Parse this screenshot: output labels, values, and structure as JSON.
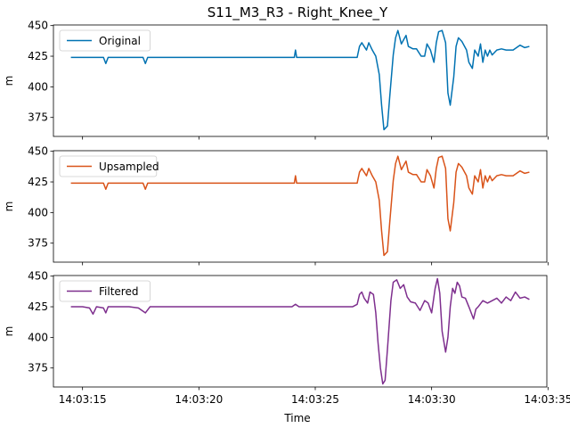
{
  "figure": {
    "title": "S11_M3_R3 - Right_Knee_Y",
    "xlabel": "Time",
    "x_tick_labels": [
      "14:03:15",
      "14:03:20",
      "14:03:25",
      "14:03:30",
      "14:03:35"
    ],
    "x_ticks_seconds": [
      15,
      20,
      25,
      30,
      35
    ]
  },
  "chart_data": [
    {
      "type": "line",
      "series": [
        {
          "name": "Original",
          "color": "#0072b2",
          "x": [
            14.5,
            15.9,
            16.0,
            16.1,
            16.4,
            16.5,
            17.6,
            17.7,
            17.8,
            18.2,
            21.3,
            24.1,
            24.15,
            24.2,
            24.3,
            26.8,
            26.9,
            27.0,
            27.2,
            27.3,
            27.45,
            27.6,
            27.75,
            27.85,
            27.95,
            28.1,
            28.2,
            28.35,
            28.45,
            28.55,
            28.7,
            28.9,
            29.0,
            29.2,
            29.35,
            29.55,
            29.7,
            29.8,
            29.95,
            30.1,
            30.2,
            30.3,
            30.45,
            30.6,
            30.7,
            30.8,
            30.95,
            31.05,
            31.15,
            31.3,
            31.5,
            31.6,
            31.75,
            31.85,
            32.0,
            32.1,
            32.2,
            32.3,
            32.4,
            32.5,
            32.6,
            32.8,
            33.0,
            33.2,
            33.5,
            33.8,
            34.0,
            34.2
          ],
          "y": [
            424,
            424,
            419,
            424,
            424,
            424,
            424,
            419,
            424,
            424,
            424,
            424,
            430,
            424,
            424,
            424,
            433,
            436,
            430,
            436,
            430,
            425,
            410,
            385,
            365,
            368,
            392,
            426,
            440,
            446,
            435,
            442,
            433,
            431,
            431,
            425,
            425,
            435,
            430,
            420,
            436,
            445,
            446,
            436,
            395,
            385,
            408,
            433,
            440,
            437,
            430,
            420,
            415,
            430,
            425,
            435,
            420,
            430,
            425,
            430,
            426,
            430,
            431,
            430,
            430,
            434,
            432,
            433
          ]
        }
      ],
      "legend_position": "upper-left",
      "ylabel": "m",
      "y_tick_labels": [
        "375",
        "400",
        "425",
        "450"
      ],
      "xlim": [
        13.75,
        34.95
      ],
      "ylim": [
        359.5,
        450.5
      ]
    },
    {
      "type": "line",
      "series": [
        {
          "name": "Upsampled",
          "color": "#d95319",
          "x": [
            14.5,
            15.9,
            16.0,
            16.1,
            16.4,
            16.5,
            17.6,
            17.7,
            17.8,
            18.2,
            21.3,
            24.1,
            24.15,
            24.2,
            24.3,
            26.8,
            26.9,
            27.0,
            27.2,
            27.3,
            27.45,
            27.6,
            27.75,
            27.85,
            27.95,
            28.1,
            28.2,
            28.35,
            28.45,
            28.55,
            28.7,
            28.9,
            29.0,
            29.2,
            29.35,
            29.55,
            29.7,
            29.8,
            29.95,
            30.1,
            30.2,
            30.3,
            30.45,
            30.6,
            30.7,
            30.8,
            30.95,
            31.05,
            31.15,
            31.3,
            31.5,
            31.6,
            31.75,
            31.85,
            32.0,
            32.1,
            32.2,
            32.3,
            32.4,
            32.5,
            32.6,
            32.8,
            33.0,
            33.2,
            33.5,
            33.8,
            34.0,
            34.2
          ],
          "y": [
            424,
            424,
            419,
            424,
            424,
            424,
            424,
            419,
            424,
            424,
            424,
            424,
            430,
            424,
            424,
            424,
            433,
            436,
            430,
            436,
            430,
            425,
            410,
            385,
            365,
            368,
            392,
            426,
            440,
            446,
            435,
            442,
            433,
            431,
            431,
            425,
            425,
            435,
            430,
            420,
            436,
            445,
            446,
            436,
            395,
            385,
            408,
            433,
            440,
            437,
            430,
            420,
            415,
            430,
            425,
            435,
            420,
            430,
            425,
            430,
            426,
            430,
            431,
            430,
            430,
            434,
            432,
            433
          ]
        }
      ],
      "legend_position": "upper-left",
      "ylabel": "m",
      "y_tick_labels": [
        "375",
        "400",
        "425",
        "450"
      ],
      "xlim": [
        13.75,
        34.95
      ],
      "ylim": [
        359.5,
        450.5
      ]
    },
    {
      "type": "line",
      "series": [
        {
          "name": "Filtered",
          "color": "#7e2f8e",
          "x": [
            14.5,
            15.0,
            15.3,
            15.45,
            15.6,
            15.9,
            16.0,
            16.1,
            16.3,
            16.6,
            17.0,
            17.4,
            17.7,
            17.9,
            18.2,
            20.0,
            23.0,
            24.0,
            24.15,
            24.3,
            26.0,
            26.6,
            26.8,
            26.9,
            27.0,
            27.1,
            27.25,
            27.35,
            27.5,
            27.6,
            27.7,
            27.8,
            27.9,
            28.0,
            28.1,
            28.25,
            28.35,
            28.5,
            28.65,
            28.8,
            28.95,
            29.1,
            29.3,
            29.5,
            29.7,
            29.85,
            30.0,
            30.15,
            30.25,
            30.35,
            30.45,
            30.6,
            30.7,
            30.8,
            30.9,
            31.0,
            31.1,
            31.2,
            31.3,
            31.45,
            31.6,
            31.7,
            31.8,
            31.9,
            32.0,
            32.2,
            32.4,
            32.6,
            32.8,
            33.0,
            33.2,
            33.4,
            33.6,
            33.8,
            34.0,
            34.2
          ],
          "y": [
            425,
            425,
            424,
            419,
            425,
            424,
            420,
            425,
            425,
            425,
            425,
            424,
            420,
            425,
            425,
            425,
            425,
            425,
            427,
            425,
            425,
            425,
            427,
            435,
            437,
            432,
            428,
            437,
            435,
            420,
            395,
            375,
            362,
            365,
            390,
            430,
            445,
            447,
            440,
            443,
            433,
            429,
            428,
            422,
            430,
            428,
            420,
            440,
            448,
            436,
            405,
            388,
            400,
            425,
            440,
            436,
            445,
            442,
            433,
            432,
            425,
            420,
            415,
            423,
            425,
            430,
            428,
            430,
            432,
            428,
            433,
            430,
            437,
            432,
            433,
            431
          ]
        }
      ],
      "legend_position": "upper-left",
      "ylabel": "m",
      "y_tick_labels": [
        "375",
        "400",
        "425",
        "450"
      ],
      "xlim": [
        13.75,
        34.95
      ],
      "ylim": [
        359.5,
        450.5
      ]
    }
  ]
}
